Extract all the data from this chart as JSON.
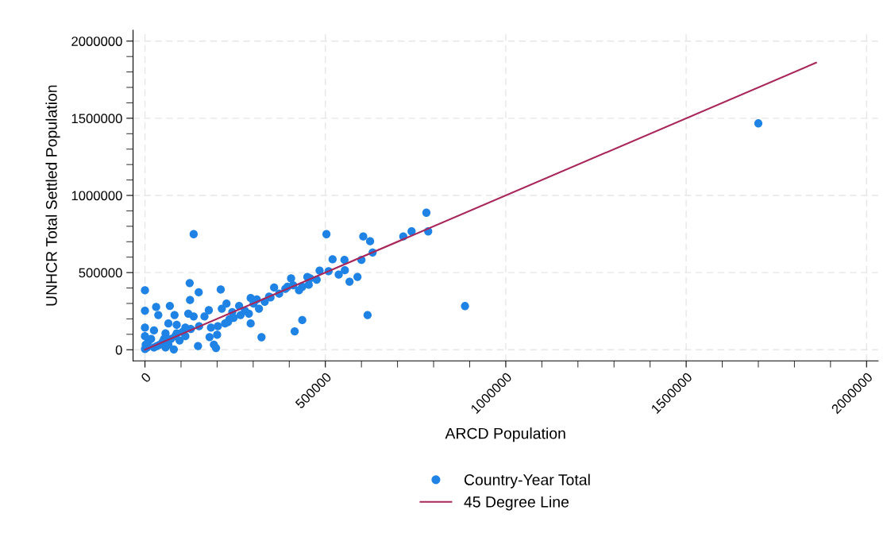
{
  "chart_data": {
    "type": "scatter",
    "xlabel": "ARCD Population",
    "ylabel": "UNHCR Total Settled Population",
    "xlim": [
      -33000,
      2032000
    ],
    "ylim": [
      -72000,
      2070000
    ],
    "xticks": [
      0,
      {
        "value": 100000,
        "label": null
      },
      {
        "value": 200000,
        "label": null
      },
      {
        "value": 300000,
        "label": null
      },
      {
        "value": 400000,
        "label": null
      },
      500000,
      {
        "value": 600000,
        "label": null
      },
      {
        "value": 700000,
        "label": null
      },
      {
        "value": 800000,
        "label": null
      },
      {
        "value": 900000,
        "label": null
      },
      1000000,
      {
        "value": 1100000,
        "label": null
      },
      {
        "value": 1200000,
        "label": null
      },
      {
        "value": 1300000,
        "label": null
      },
      {
        "value": 1400000,
        "label": null
      },
      1500000,
      {
        "value": 1600000,
        "label": null
      },
      {
        "value": 1700000,
        "label": null
      },
      {
        "value": 1800000,
        "label": null
      },
      {
        "value": 1900000,
        "label": null
      },
      2000000
    ],
    "yticks": [
      0,
      {
        "value": 100000,
        "label": null
      },
      {
        "value": 200000,
        "label": null
      },
      {
        "value": 300000,
        "label": null
      },
      {
        "value": 400000,
        "label": null
      },
      500000,
      {
        "value": 600000,
        "label": null
      },
      {
        "value": 700000,
        "label": null
      },
      {
        "value": 800000,
        "label": null
      },
      {
        "value": 900000,
        "label": null
      },
      1000000,
      {
        "value": 1100000,
        "label": null
      },
      {
        "value": 1200000,
        "label": null
      },
      {
        "value": 1300000,
        "label": null
      },
      {
        "value": 1400000,
        "label": null
      },
      1500000,
      {
        "value": 1600000,
        "label": null
      },
      {
        "value": 1700000,
        "label": null
      },
      {
        "value": 1800000,
        "label": null
      },
      {
        "value": 1900000,
        "label": null
      },
      2000000
    ],
    "grid": true,
    "legend": "bottom",
    "series": [
      {
        "name": "Country-Year Total",
        "marker": "circle",
        "color": "#1f83e6",
        "x": [
          135000,
          503000,
          605000,
          624000,
          631000,
          716000,
          739000,
          780000,
          785000,
          520000,
          553000,
          600000,
          484000,
          509000,
          537000,
          554000,
          567000,
          589000,
          476000,
          454000,
          450000,
          427000,
          436000,
          405000,
          411000,
          389000,
          372000,
          358000,
          348000,
          332000,
          316000,
          310000,
          293000,
          288000,
          293000,
          323000,
          415000,
          436000,
          617000,
          887000,
          1700000,
          261000,
          265000,
          242000,
          226000,
          210000,
          213000,
          234000,
          222000,
          202000,
          177000,
          165000,
          149000,
          124000,
          125000,
          120000,
          135000,
          150000,
          127000,
          147000,
          179000,
          191000,
          197000,
          200000,
          80000,
          69000,
          31000,
          37000,
          82000,
          0,
          0,
          65000,
          88000,
          25000,
          0,
          0,
          9000,
          17000,
          57000,
          104000,
          112000,
          49000,
          72000,
          33000,
          6000,
          65000,
          96000,
          183000,
          230000,
          246000,
          277000,
          301000,
          344000,
          395000,
          458000,
          2000,
          41000,
          53000,
          88000,
          0,
          25000,
          57000,
          84000,
          112000
        ],
        "values": [
          749000,
          749000,
          734000,
          703000,
          630000,
          734000,
          767000,
          888000,
          767000,
          586000,
          582000,
          582000,
          513000,
          509000,
          487000,
          515000,
          441000,
          472000,
          454000,
          421000,
          472000,
          385000,
          408000,
          462000,
          418000,
          394000,
          363000,
          403000,
          339000,
          311000,
          266000,
          326000,
          335000,
          234000,
          170000,
          81000,
          119000,
          192000,
          225000,
          283000,
          1467000,
          284000,
          225000,
          244000,
          299000,
          390000,
          266000,
          198000,
          170000,
          152000,
          256000,
          216000,
          372000,
          432000,
          322000,
          234000,
          216000,
          152000,
          134000,
          24000,
          82000,
          33000,
          11000,
          97000,
          2000,
          284000,
          277000,
          225000,
          225000,
          385000,
          253000,
          170000,
          161000,
          125000,
          143000,
          88000,
          51000,
          70000,
          106000,
          115000,
          88000,
          51000,
          70000,
          24000,
          15000,
          33000,
          60000,
          143000,
          179000,
          207000,
          253000,
          299000,
          344000,
          408000,
          463000,
          33000,
          33000,
          70000,
          106000,
          5000,
          15000,
          15000,
          88000,
          143000
        ]
      },
      {
        "name": "45 Degree Line",
        "type": "line",
        "marker": "none",
        "line_style": "solid",
        "color": "#a8265a",
        "x": [
          0,
          1860000
        ],
        "values": [
          0,
          1860000
        ]
      }
    ]
  }
}
